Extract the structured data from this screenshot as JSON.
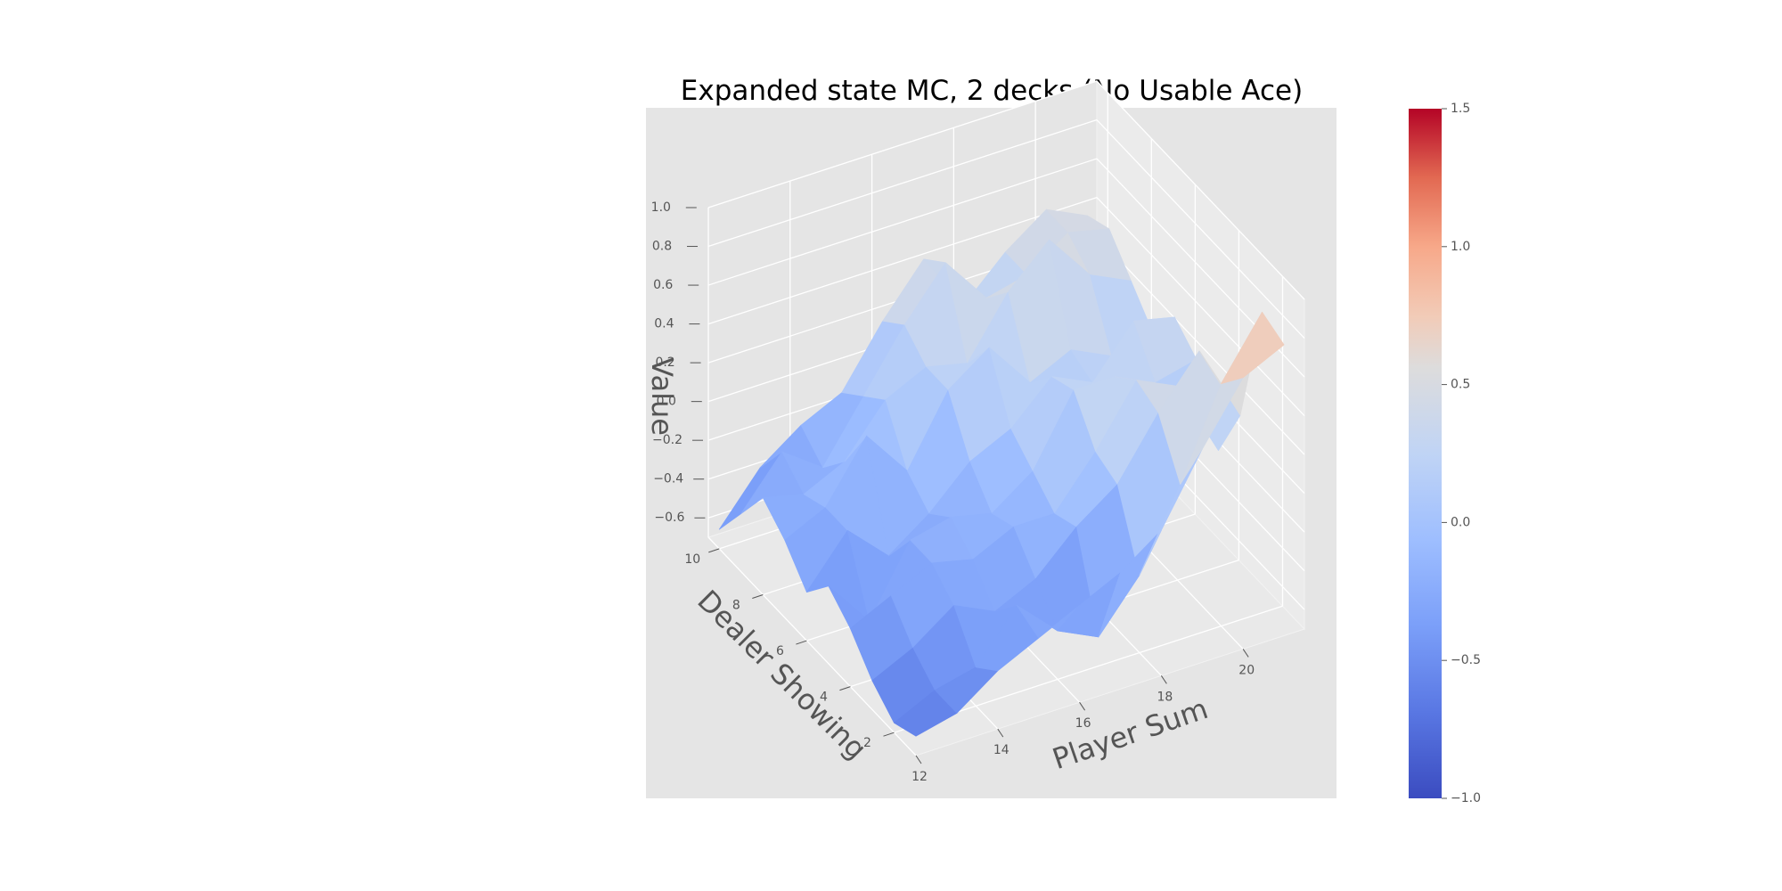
{
  "chart_data": {
    "type": "surface3d",
    "title": "Expanded state MC, 2 decks (No Usable Ace)",
    "xlabel": "Player Sum",
    "ylabel": "Dealer Showing",
    "zlabel": "Value",
    "x": [
      12,
      13,
      14,
      15,
      16,
      17,
      18,
      19,
      20,
      21
    ],
    "y": [
      1,
      2,
      3,
      4,
      5,
      6,
      7,
      8,
      9,
      10
    ],
    "x_ticks": [
      "12",
      "14",
      "16",
      "18",
      "20"
    ],
    "y_ticks": [
      "2",
      "4",
      "6",
      "8",
      "10"
    ],
    "z_ticks": [
      "−0.6",
      "−0.4",
      "−0.2",
      "0.0",
      "0.2",
      "0.4",
      "0.6",
      "0.8",
      "1.0"
    ],
    "xlim": [
      12,
      21.5
    ],
    "ylim": [
      1,
      10.5
    ],
    "zlim": [
      -0.7,
      1.0
    ],
    "z": [
      [
        -0.6,
        -0.55,
        -0.4,
        -0.3,
        -0.2,
        -0.1,
        0.05,
        0.4,
        0.7,
        0.8
      ],
      [
        -0.65,
        -0.55,
        -0.5,
        -0.25,
        -0.45,
        -0.55,
        -0.3,
        0.1,
        0.55,
        0.85
      ],
      [
        -0.55,
        -0.45,
        -0.3,
        -0.4,
        -0.3,
        -0.1,
        0.05,
        0.35,
        0.6,
        0.2
      ],
      [
        -0.4,
        -0.3,
        -0.2,
        -0.25,
        -0.15,
        -0.15,
        0.1,
        0.4,
        0.3,
        -0.1
      ],
      [
        -0.3,
        -0.55,
        -0.2,
        -0.15,
        -0.2,
        -0.05,
        0.3,
        0.3,
        0.2,
        0.25
      ],
      [
        -0.45,
        -0.2,
        -0.4,
        -0.25,
        -0.05,
        0.05,
        0.25,
        0.15,
        0.4,
        0.35
      ],
      [
        -0.3,
        -0.2,
        0.1,
        -0.15,
        0.2,
        0.35,
        0.1,
        0.2,
        0.1,
        0.15
      ],
      [
        -0.2,
        -0.25,
        -0.15,
        0.1,
        0.2,
        0.15,
        0.45,
        0.65,
        0.4,
        0.3
      ],
      [
        -0.4,
        -0.15,
        -0.3,
        0.0,
        0.3,
        0.55,
        0.3,
        0.35,
        0.5,
        0.45
      ],
      [
        -0.6,
        -0.35,
        -0.2,
        -0.1,
        0.2,
        0.45,
        0.15,
        0.35,
        0.5,
        0.4
      ]
    ],
    "colormap": "coolwarm",
    "colorbar": {
      "min": -1.0,
      "max": 1.5,
      "ticks": [
        "−1.0",
        "−0.5",
        "0.0",
        "0.5",
        "1.0",
        "1.5"
      ]
    },
    "colors": {
      "pane": "#e5e5e5",
      "grid": "#ffffff",
      "cold": "#3b4cc0",
      "neutral": "#dddddd",
      "warm": "#b40426"
    },
    "grid": true,
    "legend": "colorbar-right"
  }
}
